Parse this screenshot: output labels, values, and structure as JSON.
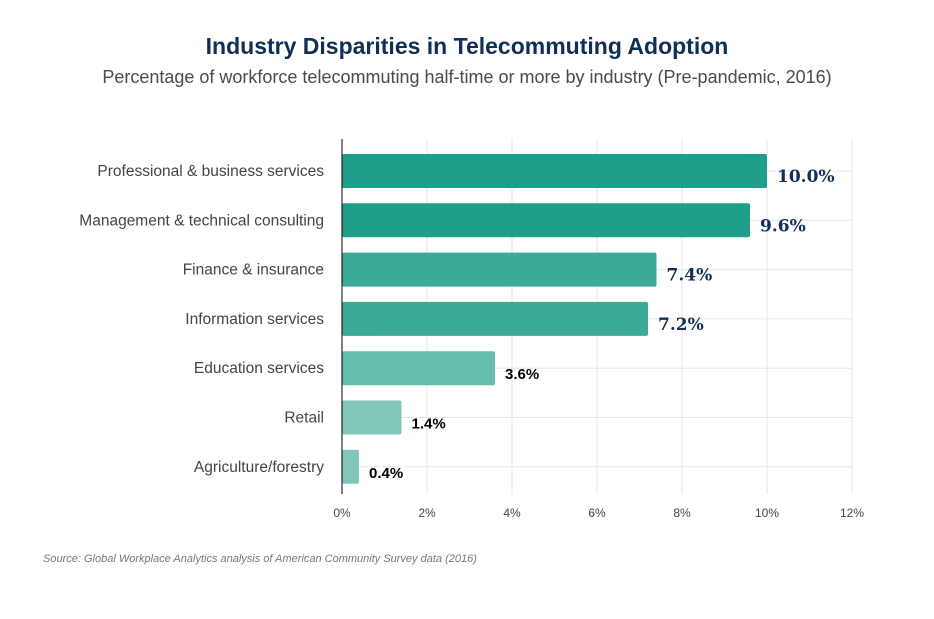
{
  "title": "Industry Disparities in Telecommuting Adoption",
  "subtitle": "Percentage of workforce telecommuting half-time or more by industry (Pre-pandemic, 2016)",
  "source": "Source: Global Workplace Analytics analysis of American Community Survey data (2016)",
  "colors": {
    "title": "#0f2f57",
    "high": "#1f9e89",
    "mid": "#3daa97",
    "low": "#66bcad",
    "lowest": "#80c6b9",
    "label_highlight": "#0f2f57",
    "label_plain": "#000000",
    "grid": "#e6e6e6"
  },
  "chart_data": {
    "type": "bar",
    "orientation": "horizontal",
    "categories": [
      "Professional & business services",
      "Management & technical consulting",
      "Finance & insurance",
      "Information services",
      "Education services",
      "Retail",
      "Agriculture/forestry"
    ],
    "values": [
      10.0,
      9.6,
      7.4,
      7.2,
      3.6,
      1.4,
      0.4
    ],
    "value_labels": [
      "10.0%",
      "9.6%",
      "7.4%",
      "7.2%",
      "3.6%",
      "1.4%",
      "0.4%"
    ],
    "xlim": [
      0,
      12
    ],
    "x_ticks": [
      "0%",
      "2%",
      "4%",
      "6%",
      "8%",
      "10%",
      "12%"
    ],
    "grid": true,
    "xlabel": "",
    "ylabel": ""
  }
}
